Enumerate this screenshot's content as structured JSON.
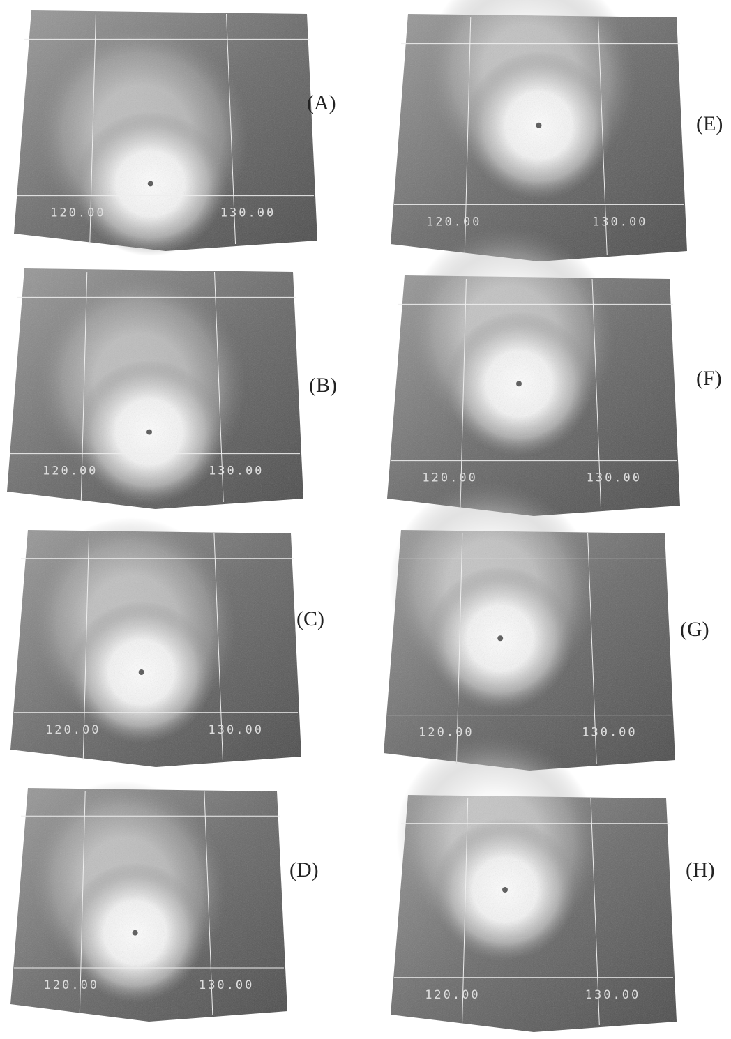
{
  "panels": [
    {
      "label": "(A)",
      "lon_labels": [
        "120.00",
        "130.00"
      ]
    },
    {
      "label": "(B)",
      "lon_labels": [
        "120.00",
        "130.00"
      ]
    },
    {
      "label": "(C)",
      "lon_labels": [
        "120.00",
        "130.00"
      ]
    },
    {
      "label": "(D)",
      "lon_labels": [
        "120.00",
        "130.00"
      ]
    },
    {
      "label": "(E)",
      "lon_labels": [
        "120.00",
        "130.00"
      ]
    },
    {
      "label": "(F)",
      "lon_labels": [
        "120.00",
        "130.00"
      ]
    },
    {
      "label": "(G)",
      "lon_labels": [
        "120.00",
        "130.00"
      ]
    },
    {
      "label": "(H)",
      "lon_labels": [
        "120.00",
        "130.00"
      ]
    }
  ]
}
